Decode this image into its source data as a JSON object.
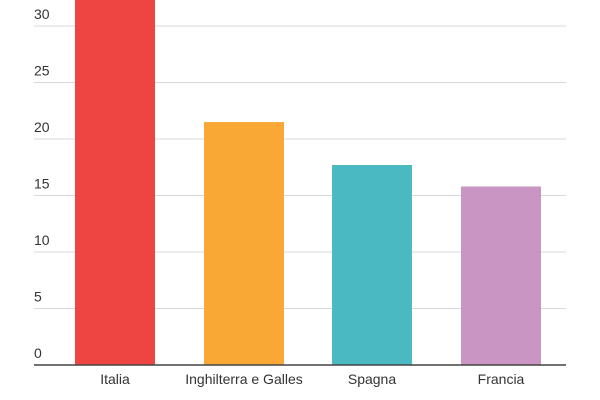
{
  "chart_data": {
    "type": "bar",
    "categories": [
      "Italia",
      "Inghilterra e Galles",
      "Spagna",
      "Francia"
    ],
    "values": [
      34,
      21.5,
      17.7,
      15.8
    ],
    "colors": [
      "#ef4542",
      "#f9a836",
      "#4ab9c1",
      "#c996c3"
    ],
    "yticks": [
      0,
      5,
      10,
      15,
      20,
      25,
      30
    ],
    "ylim": [
      0,
      32.5
    ],
    "title": "",
    "xlabel": "",
    "ylabel": "",
    "grid": true,
    "legend": "none"
  }
}
